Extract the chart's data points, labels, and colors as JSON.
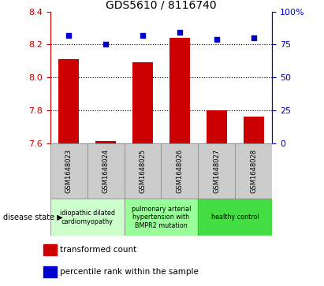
{
  "title": "GDS5610 / 8116740",
  "samples": [
    "GSM1648023",
    "GSM1648024",
    "GSM1648025",
    "GSM1648026",
    "GSM1648027",
    "GSM1648028"
  ],
  "bar_values": [
    8.11,
    7.61,
    8.09,
    8.24,
    7.8,
    7.76
  ],
  "scatter_values": [
    82,
    75,
    82,
    84,
    79,
    80
  ],
  "ylim_left": [
    7.6,
    8.4
  ],
  "ylim_right": [
    0,
    100
  ],
  "yticks_left": [
    7.6,
    7.8,
    8.0,
    8.2,
    8.4
  ],
  "yticks_right": [
    0,
    25,
    50,
    75,
    100
  ],
  "bar_color": "#cc0000",
  "scatter_color": "#0000cc",
  "bar_bottom": 7.6,
  "disease_groups": [
    {
      "label": "idiopathic dilated\ncardiomyopathy",
      "indices": [
        0,
        1
      ],
      "color": "#ccffcc"
    },
    {
      "label": "pulmonary arterial\nhypertension with\nBMPR2 mutation",
      "indices": [
        2,
        3
      ],
      "color": "#99ff99"
    },
    {
      "label": "healthy control",
      "indices": [
        4,
        5
      ],
      "color": "#44dd44"
    }
  ],
  "legend_bar_label": "transformed count",
  "legend_scatter_label": "percentile rank within the sample",
  "disease_state_label": "disease state",
  "title_color": "#000000",
  "left_axis_color": "#cc0000",
  "right_axis_color": "#0000cc",
  "grid_dotted_levels": [
    7.8,
    8.0,
    8.2
  ],
  "table_bg_color": "#cccccc",
  "table_border_color": "#888888"
}
